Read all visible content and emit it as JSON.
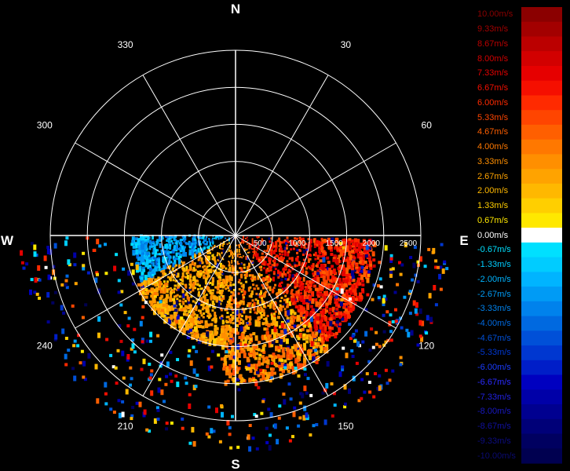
{
  "chart_data": {
    "type": "polar-scatter",
    "compass": {
      "north": "N",
      "south": "S",
      "east": "E",
      "west": "W"
    },
    "angle_labels": [
      {
        "deg": 30,
        "text": "30"
      },
      {
        "deg": 60,
        "text": "60"
      },
      {
        "deg": 120,
        "text": "120"
      },
      {
        "deg": 150,
        "text": "150"
      },
      {
        "deg": 210,
        "text": "210"
      },
      {
        "deg": 240,
        "text": "240"
      },
      {
        "deg": 300,
        "text": "300"
      },
      {
        "deg": 330,
        "text": "330"
      }
    ],
    "spokes_deg": [
      0,
      30,
      60,
      90,
      120,
      150,
      180,
      210,
      240,
      270,
      300,
      330
    ],
    "range_rings": [
      500,
      1000,
      1500,
      2000,
      2500
    ],
    "range_labels": [
      "500",
      "1000",
      "1500",
      "2000",
      "2500"
    ],
    "range_max": 2500,
    "value_unit": "m/s",
    "value_range": [
      -10,
      10
    ],
    "legend": {
      "labels": [
        "10.00m/s",
        "9.33m/s",
        "8.67m/s",
        "8.00m/s",
        "7.33m/s",
        "6.67m/s",
        "6.00m/s",
        "5.33m/s",
        "4.67m/s",
        "4.00m/s",
        "3.33m/s",
        "2.67m/s",
        "2.00m/s",
        "1.33m/s",
        "0.67m/s",
        "0.00m/s",
        "-0.67m/s",
        "-1.33m/s",
        "-2.00m/s",
        "-2.67m/s",
        "-3.33m/s",
        "-4.00m/s",
        "-4.67m/s",
        "-5.33m/s",
        "-6.00m/s",
        "-6.67m/s",
        "-7.33m/s",
        "-8.00m/s",
        "-8.67m/s",
        "-9.33m/s",
        "-10.00m/s"
      ],
      "colors": [
        "#8b0000",
        "#a30000",
        "#bb0000",
        "#d20000",
        "#e60000",
        "#f50f00",
        "#ff2a00",
        "#ff4500",
        "#ff5f00",
        "#ff7800",
        "#ff8f00",
        "#ffa300",
        "#ffb800",
        "#ffcf00",
        "#ffe800",
        "#ffffff",
        "#00e0ff",
        "#00ccff",
        "#00b4ff",
        "#009bf5",
        "#0082ec",
        "#0069e0",
        "#0050d8",
        "#0037d0",
        "#001ec8",
        "#0000c0",
        "#0000a8",
        "#000090",
        "#000078",
        "#000060",
        "#000050"
      ],
      "label_colors": [
        "#8b0000",
        "#a30000",
        "#bb0000",
        "#d20000",
        "#e60000",
        "#f50f00",
        "#ff2a00",
        "#ff4500",
        "#ff5f00",
        "#ff7800",
        "#ff8f00",
        "#ffa300",
        "#ffb800",
        "#ffcf00",
        "#ffe800",
        "#ffffff",
        "#00e0ff",
        "#00ccff",
        "#00b4ff",
        "#009bf5",
        "#0082ec",
        "#0069e0",
        "#0050d8",
        "#0037d0",
        "#1a3cff",
        "#2a2aff",
        "#2020e0",
        "#1818c0",
        "#1010a0",
        "#0c0c80",
        "#0a0a70"
      ]
    },
    "sector_groups": [
      {
        "az": [
          92,
          140
        ],
        "rmin": 0,
        "rmax": 1900,
        "vmin": 4.5,
        "vmax": 8.0,
        "n": 1000
      },
      {
        "az": [
          140,
          185
        ],
        "rmin": 0,
        "rmax": 2000,
        "vmin": 1.5,
        "vmax": 5.5,
        "n": 800
      },
      {
        "az": [
          185,
          245
        ],
        "rmin": 0,
        "rmax": 1500,
        "vmin": 1.5,
        "vmax": 4.0,
        "n": 800
      },
      {
        "az": [
          245,
          270
        ],
        "rmin": 0,
        "rmax": 1400,
        "vmin": -4.0,
        "vmax": -0.67,
        "n": 400
      },
      {
        "az": [
          92,
          270
        ],
        "rmin": 1200,
        "rmax": 2900,
        "vmin": -10,
        "vmax": 8,
        "n": 500
      }
    ]
  }
}
